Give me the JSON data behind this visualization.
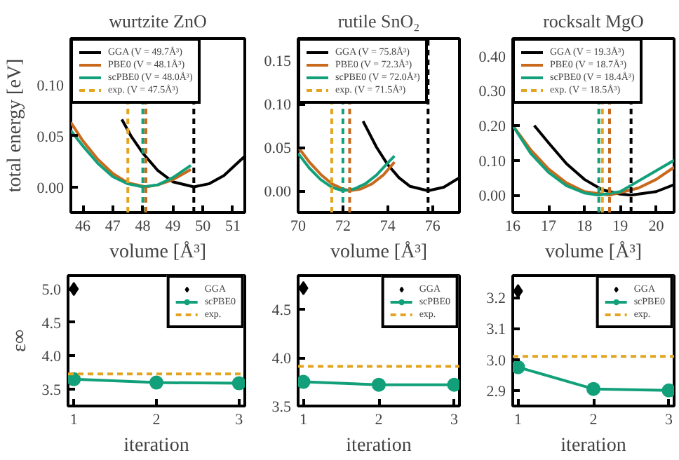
{
  "chart_data": [
    {
      "type": "line",
      "title": "wurtzite ZnO",
      "xlabel": "volume [Å³]",
      "ylabel": "total energy [eV]",
      "xlim": [
        45.6,
        51.4
      ],
      "xticks": [
        46,
        47,
        48,
        49,
        50,
        51
      ],
      "ylim": [
        -0.025,
        0.145
      ],
      "yticks": [
        {
          "value": 0,
          "label": "0.00"
        },
        {
          "value": 0.05,
          "label": "0.05"
        },
        {
          "value": 0.1,
          "label": "0.10"
        }
      ],
      "legend": "top left",
      "grid": false,
      "line_style": "solid",
      "marker": "none",
      "series": [
        {
          "name": "GGA (V = 49.7Å³)",
          "color": "#000000",
          "x": [
            47.3,
            47.6,
            48,
            48.5,
            49,
            49.7,
            50.2,
            50.7,
            51.4
          ],
          "values": [
            0.066,
            0.05,
            0.033,
            0.016,
            0.005,
            0,
            0.003,
            0.011,
            0.03
          ]
        },
        {
          "name": "PBE0 (V = 48.1Å³)",
          "color": "#c8691c",
          "x": [
            45.6,
            46,
            46.5,
            47,
            47.5,
            48.1,
            48.5,
            49,
            49.6
          ],
          "values": [
            0.063,
            0.045,
            0.027,
            0.013,
            0.004,
            0,
            0.002,
            0.007,
            0.017
          ]
        },
        {
          "name": "scPBE0 (V = 48.0Å³)",
          "color": "#11a07a",
          "x": [
            45.6,
            46,
            46.5,
            47,
            47.5,
            48,
            48.5,
            49,
            49.6
          ],
          "values": [
            0.055,
            0.04,
            0.023,
            0.01,
            0.003,
            0,
            0.002,
            0.009,
            0.021
          ]
        }
      ],
      "ref_lines": [
        {
          "axis": "x",
          "value": 49.7,
          "color": "#000000",
          "line_style": "dashed"
        },
        {
          "axis": "x",
          "value": 48.1,
          "color": "#c8691c",
          "line_style": "dashed"
        },
        {
          "axis": "x",
          "value": 48.0,
          "color": "#11a07a",
          "line_style": "dashed"
        },
        {
          "axis": "x",
          "value": 47.5,
          "color": "#e3a521",
          "line_style": "dashed",
          "label": "exp. (V = 47.5Å³)"
        }
      ]
    },
    {
      "type": "line",
      "title": "rutile SnO₂",
      "xlabel": "volume [Å³]",
      "xlim": [
        70,
        77.2
      ],
      "xticks": [
        70,
        72,
        74,
        76
      ],
      "ylim": [
        -0.025,
        0.175
      ],
      "yticks": [
        {
          "value": 0,
          "label": "0.00"
        },
        {
          "value": 0.05,
          "label": "0.05"
        },
        {
          "value": 0.1,
          "label": "0.10"
        },
        {
          "value": 0.15,
          "label": "0.15"
        }
      ],
      "legend": "top left",
      "grid": false,
      "line_style": "solid",
      "marker": "none",
      "series": [
        {
          "name": "GGA (V = 75.8Å³)",
          "color": "#000000",
          "x": [
            72.9,
            73.5,
            74,
            74.5,
            75,
            75.8,
            76.5,
            77.2
          ],
          "values": [
            0.08,
            0.05,
            0.03,
            0.015,
            0.005,
            0,
            0.004,
            0.015
          ]
        },
        {
          "name": "PBE0 (V = 72.3Å³)",
          "color": "#c8691c",
          "x": [
            70,
            70.5,
            71,
            71.5,
            72,
            72.3,
            72.8,
            73.3,
            73.8,
            74.3
          ],
          "values": [
            0.05,
            0.033,
            0.019,
            0.008,
            0.002,
            0,
            0.002,
            0.008,
            0.018,
            0.033
          ]
        },
        {
          "name": "scPBE0 (V = 72.0Å³)",
          "color": "#11a07a",
          "x": [
            70,
            70.5,
            71,
            71.5,
            72,
            72.5,
            73,
            73.5,
            74,
            74.3
          ],
          "values": [
            0.043,
            0.026,
            0.013,
            0.004,
            0,
            0.002,
            0.008,
            0.018,
            0.032,
            0.04
          ]
        }
      ],
      "ref_lines": [
        {
          "axis": "x",
          "value": 75.8,
          "color": "#000000",
          "line_style": "dashed"
        },
        {
          "axis": "x",
          "value": 72.3,
          "color": "#c8691c",
          "line_style": "dashed"
        },
        {
          "axis": "x",
          "value": 72.0,
          "color": "#11a07a",
          "line_style": "dashed"
        },
        {
          "axis": "x",
          "value": 71.5,
          "color": "#e3a521",
          "line_style": "dashed",
          "label": "exp. (V = 71.5Å³)"
        }
      ]
    },
    {
      "type": "line",
      "title": "rocksalt MgO",
      "xlabel": "volume [Å³]",
      "xlim": [
        16,
        20.5
      ],
      "xticks": [
        16,
        17,
        18,
        19,
        20
      ],
      "ylim": [
        -0.05,
        0.45
      ],
      "yticks": [
        {
          "value": 0,
          "label": "0.00"
        },
        {
          "value": 0.1,
          "label": "0.10"
        },
        {
          "value": 0.2,
          "label": "0.20"
        },
        {
          "value": 0.3,
          "label": "0.30"
        },
        {
          "value": 0.4,
          "label": "0.40"
        }
      ],
      "legend": "top left",
      "grid": false,
      "line_style": "solid",
      "marker": "none",
      "series": [
        {
          "name": "GGA (V = 19.3Å³)",
          "color": "#000000",
          "x": [
            16.6,
            17,
            17.5,
            18,
            18.5,
            19,
            19.3,
            20,
            20.5
          ],
          "values": [
            0.2,
            0.15,
            0.09,
            0.045,
            0.015,
            0.003,
            0,
            0.01,
            0.03
          ]
        },
        {
          "name": "PBE0 (V = 18.7Å³)",
          "color": "#c8691c",
          "x": [
            16,
            16.5,
            17,
            17.5,
            18,
            18.7,
            19.5,
            20,
            20.5
          ],
          "values": [
            0.2,
            0.13,
            0.075,
            0.035,
            0.01,
            0,
            0.02,
            0.045,
            0.08
          ]
        },
        {
          "name": "scPBE0 (V = 18.4Å³)",
          "color": "#11a07a",
          "x": [
            16,
            16.5,
            17,
            17.5,
            18,
            18.4,
            19,
            19.5,
            20,
            20.5
          ],
          "values": [
            0.2,
            0.12,
            0.065,
            0.027,
            0.006,
            0,
            0.01,
            0.04,
            0.07,
            0.1
          ]
        }
      ],
      "ref_lines": [
        {
          "axis": "x",
          "value": 19.3,
          "color": "#000000",
          "line_style": "dashed"
        },
        {
          "axis": "x",
          "value": 18.7,
          "color": "#c8691c",
          "line_style": "dashed"
        },
        {
          "axis": "x",
          "value": 18.4,
          "color": "#11a07a",
          "line_style": "dashed"
        },
        {
          "axis": "x",
          "value": 18.5,
          "color": "#e3a521",
          "line_style": "dashed",
          "label": "exp. (V = 18.5Å³)"
        }
      ]
    },
    {
      "type": "line",
      "xlabel": "iteration",
      "ylabel": "ε∞",
      "xlim": [
        0.93,
        3.07
      ],
      "xticks": [
        1,
        2,
        3
      ],
      "ylim": [
        3.25,
        5.2
      ],
      "yticks": [
        {
          "value": 3.5,
          "label": "3.5"
        },
        {
          "value": 4,
          "label": "4.0"
        },
        {
          "value": 4.5,
          "label": "4.5"
        },
        {
          "value": 5,
          "label": "5.0"
        }
      ],
      "legend": "top right",
      "grid": false,
      "series": [
        {
          "name": "GGA",
          "type": "scatter",
          "marker": "diamond",
          "color": "#000000",
          "x": [
            1
          ],
          "values": [
            5.0
          ]
        },
        {
          "name": "scPBE0",
          "type": "line",
          "marker": "circle",
          "color": "#11a07a",
          "x": [
            1,
            2,
            3
          ],
          "values": [
            3.65,
            3.6,
            3.59
          ]
        }
      ],
      "ref_lines": [
        {
          "axis": "y",
          "value": 3.73,
          "color": "#e3a521",
          "line_style": "dashed",
          "label": "exp."
        }
      ]
    },
    {
      "type": "line",
      "xlabel": "iteration",
      "xlim": [
        0.93,
        3.07
      ],
      "xticks": [
        1,
        2,
        3
      ],
      "ylim": [
        3.5,
        4.85
      ],
      "yticks": [
        {
          "value": 3.5,
          "label": "3.5"
        },
        {
          "value": 4,
          "label": "4.0"
        },
        {
          "value": 4.5,
          "label": "4.5"
        }
      ],
      "legend": "top right",
      "grid": false,
      "series": [
        {
          "name": "GGA",
          "type": "scatter",
          "marker": "diamond",
          "color": "#000000",
          "x": [
            1
          ],
          "values": [
            4.72
          ]
        },
        {
          "name": "scPBE0",
          "type": "line",
          "marker": "circle",
          "color": "#11a07a",
          "x": [
            1,
            2,
            3
          ],
          "values": [
            3.75,
            3.72,
            3.72
          ]
        }
      ],
      "ref_lines": [
        {
          "axis": "y",
          "value": 3.91,
          "color": "#e3a521",
          "line_style": "dashed",
          "label": "exp."
        }
      ]
    },
    {
      "type": "line",
      "xlabel": "iteration",
      "xlim": [
        0.93,
        3.07
      ],
      "xticks": [
        1,
        2,
        3
      ],
      "ylim": [
        2.85,
        3.27
      ],
      "yticks": [
        {
          "value": 2.9,
          "label": "2.9"
        },
        {
          "value": 3,
          "label": "3.0"
        },
        {
          "value": 3.1,
          "label": "3.1"
        },
        {
          "value": 3.2,
          "label": "3.2"
        }
      ],
      "legend": "top right",
      "grid": false,
      "series": [
        {
          "name": "GGA",
          "type": "scatter",
          "marker": "diamond",
          "color": "#000000",
          "x": [
            1
          ],
          "values": [
            3.22
          ]
        },
        {
          "name": "scPBE0",
          "type": "line",
          "marker": "circle",
          "color": "#11a07a",
          "x": [
            1,
            2,
            3
          ],
          "values": [
            2.975,
            2.905,
            2.9
          ]
        }
      ],
      "ref_lines": [
        {
          "axis": "y",
          "value": 3.01,
          "color": "#e3a521",
          "line_style": "dashed",
          "label": "exp."
        }
      ]
    }
  ]
}
